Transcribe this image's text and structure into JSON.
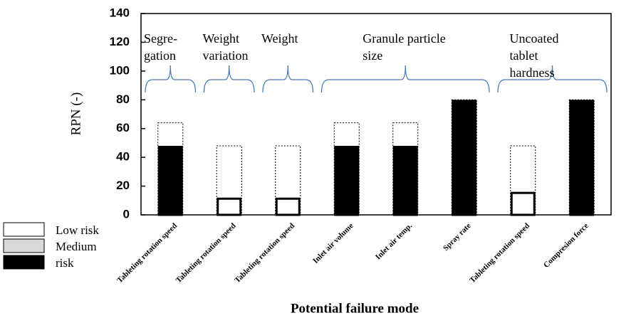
{
  "chart_data": {
    "type": "bar",
    "ylabel": "RPN (-)",
    "xlabel": "Potential failure mode",
    "categories": [
      "Tableting rotation speed",
      "Tableting rotation speed",
      "Tableting rotation speed",
      "Inlet air volume",
      "Inlet air temp.",
      "Spray rate",
      "Tableting rotation speed",
      "Compresion force"
    ],
    "values": [
      48,
      12,
      12,
      48,
      48,
      80,
      16,
      80
    ],
    "bar_colors": [
      "#000000",
      "#ffffff",
      "#ffffff",
      "#000000",
      "#000000",
      "#000000",
      "#ffffff",
      "#000000"
    ],
    "outline_values": [
      64,
      48,
      48,
      64,
      64,
      80,
      48,
      80
    ],
    "ylim": [
      0,
      140
    ],
    "yticks": [
      0,
      20,
      40,
      60,
      80,
      100,
      120,
      140
    ],
    "groups": [
      {
        "lines": [
          "Segre-",
          "gation"
        ],
        "first_category": 0,
        "last_category": 0
      },
      {
        "lines": [
          "Weight",
          "variation"
        ],
        "first_category": 1,
        "last_category": 1
      },
      {
        "lines": [
          "Weight"
        ],
        "first_category": 2,
        "last_category": 2
      },
      {
        "lines": [
          "Granule particle",
          "size"
        ],
        "first_category": 3,
        "last_category": 5
      },
      {
        "lines": [
          "Uncoated",
          "tablet",
          "hardness"
        ],
        "first_category": 6,
        "last_category": 7
      }
    ],
    "legend": [
      {
        "label": "Low risk",
        "color": "#ffffff"
      },
      {
        "label": "Medium",
        "color": "#d9d9d9"
      },
      {
        "label": "risk",
        "color": "#000000"
      }
    ]
  }
}
